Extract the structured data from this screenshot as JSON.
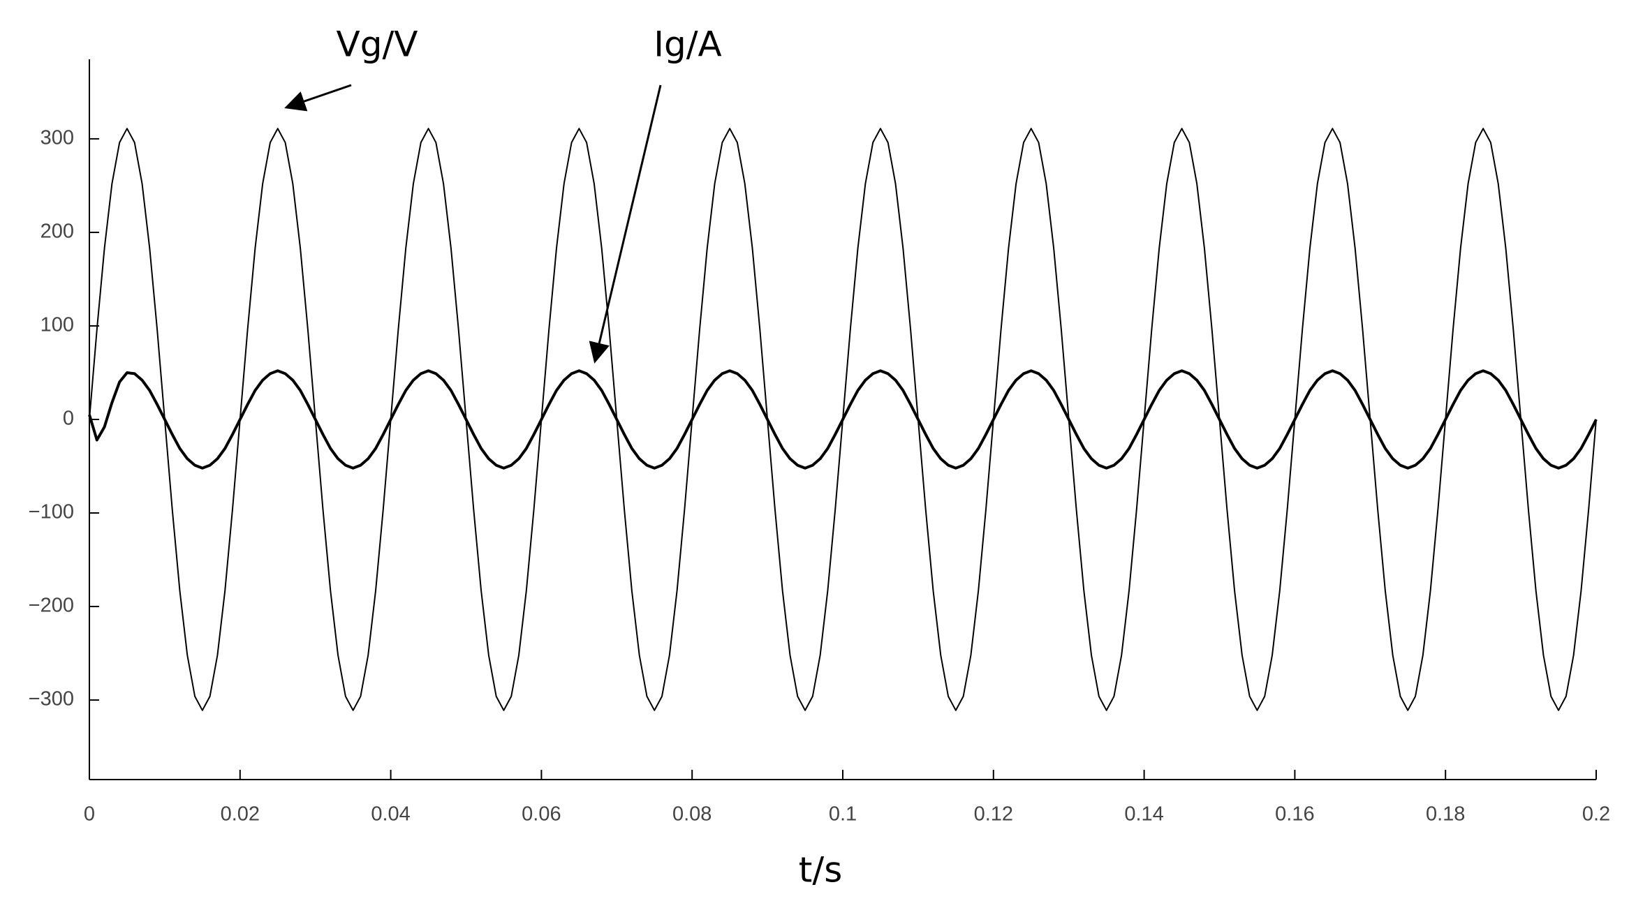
{
  "chart_data": {
    "type": "line",
    "xlabel": "t/s",
    "x": [
      0,
      0.001,
      0.002,
      0.003,
      0.004,
      0.005,
      0.006,
      0.007,
      0.008,
      0.009,
      0.01,
      0.011,
      0.012,
      0.013,
      0.014,
      0.015,
      0.016,
      0.017,
      0.018,
      0.019,
      0.02,
      0.021,
      0.022,
      0.023,
      0.024,
      0.025,
      0.026,
      0.027,
      0.028,
      0.029,
      0.03,
      0.031,
      0.032,
      0.033,
      0.034,
      0.035,
      0.036,
      0.037,
      0.038,
      0.039,
      0.04,
      0.041,
      0.042,
      0.043,
      0.044,
      0.045,
      0.046,
      0.047,
      0.048,
      0.049,
      0.05,
      0.051,
      0.052,
      0.053,
      0.054,
      0.055,
      0.056,
      0.057,
      0.058,
      0.059,
      0.06,
      0.061,
      0.062,
      0.063,
      0.064,
      0.065,
      0.066,
      0.067,
      0.068,
      0.069,
      0.07,
      0.071,
      0.072,
      0.073,
      0.074,
      0.075,
      0.076,
      0.077,
      0.078,
      0.079,
      0.08,
      0.081,
      0.082,
      0.083,
      0.084,
      0.085,
      0.086,
      0.087,
      0.088,
      0.089,
      0.09,
      0.091,
      0.092,
      0.093,
      0.094,
      0.095,
      0.096,
      0.097,
      0.098,
      0.099,
      0.1,
      0.101,
      0.102,
      0.103,
      0.104,
      0.105,
      0.106,
      0.107,
      0.108,
      0.109,
      0.11,
      0.111,
      0.112,
      0.113,
      0.114,
      0.115,
      0.116,
      0.117,
      0.118,
      0.119,
      0.12,
      0.121,
      0.122,
      0.123,
      0.124,
      0.125,
      0.126,
      0.127,
      0.128,
      0.129,
      0.13,
      0.131,
      0.132,
      0.133,
      0.134,
      0.135,
      0.136,
      0.137,
      0.138,
      0.139,
      0.14,
      0.141,
      0.142,
      0.143,
      0.144,
      0.145,
      0.146,
      0.147,
      0.148,
      0.149,
      0.15,
      0.151,
      0.152,
      0.153,
      0.154,
      0.155,
      0.156,
      0.157,
      0.158,
      0.159,
      0.16,
      0.161,
      0.162,
      0.163,
      0.164,
      0.165,
      0.166,
      0.167,
      0.168,
      0.169,
      0.17,
      0.171,
      0.172,
      0.173,
      0.174,
      0.175,
      0.176,
      0.177,
      0.178,
      0.179,
      0.18,
      0.181,
      0.182,
      0.183,
      0.184,
      0.185,
      0.186,
      0.187,
      0.188,
      0.189,
      0.19,
      0.191,
      0.192,
      0.193,
      0.194,
      0.195,
      0.196,
      0.197,
      0.198,
      0.199,
      0.2
    ],
    "series": [
      {
        "name": "Vg/V",
        "color": "#000000",
        "values": [
          0,
          96,
          183,
          252,
          296,
          311,
          296,
          252,
          183,
          96,
          0,
          -96,
          -183,
          -252,
          -296,
          -311,
          -296,
          -252,
          -183,
          -96,
          0,
          96,
          183,
          252,
          296,
          311,
          296,
          252,
          183,
          96,
          0,
          -96,
          -183,
          -252,
          -296,
          -311,
          -296,
          -252,
          -183,
          -96,
          0,
          96,
          183,
          252,
          296,
          311,
          296,
          252,
          183,
          96,
          0,
          -96,
          -183,
          -252,
          -296,
          -311,
          -296,
          -252,
          -183,
          -96,
          0,
          96,
          183,
          252,
          296,
          311,
          296,
          252,
          183,
          96,
          0,
          -96,
          -183,
          -252,
          -296,
          -311,
          -296,
          -252,
          -183,
          -96,
          0,
          96,
          183,
          252,
          296,
          311,
          296,
          252,
          183,
          96,
          0,
          -96,
          -183,
          -252,
          -296,
          -311,
          -296,
          -252,
          -183,
          -96,
          0,
          96,
          183,
          252,
          296,
          311,
          296,
          252,
          183,
          96,
          0,
          -96,
          -183,
          -252,
          -296,
          -311,
          -296,
          -252,
          -183,
          -96,
          0,
          96,
          183,
          252,
          296,
          311,
          296,
          252,
          183,
          96,
          0,
          -96,
          -183,
          -252,
          -296,
          -311,
          -296,
          -252,
          -183,
          -96,
          0,
          96,
          183,
          252,
          296,
          311,
          296,
          252,
          183,
          96,
          0,
          -96,
          -183,
          -252,
          -296,
          -311,
          -296,
          -252,
          -183,
          -96,
          0,
          96,
          183,
          252,
          296,
          311,
          296,
          252,
          183,
          96,
          0,
          -96,
          -183,
          -252,
          -296,
          -311,
          -296,
          -252,
          -183,
          -96,
          0,
          96,
          183,
          252,
          296,
          311,
          296,
          252,
          183,
          96,
          0,
          -96,
          -183,
          -252,
          -296,
          -311,
          -296,
          -252,
          -183,
          -96,
          0
        ]
      },
      {
        "name": "Ig/A",
        "color": "#000000",
        "values": [
          5,
          -22,
          -8,
          18,
          40,
          50,
          49,
          42,
          31,
          16,
          0,
          -16,
          -31,
          -42,
          -49,
          -52,
          -49,
          -42,
          -31,
          -16,
          0,
          16,
          31,
          42,
          49,
          52,
          49,
          42,
          31,
          16,
          0,
          -16,
          -31,
          -42,
          -49,
          -52,
          -49,
          -42,
          -31,
          -16,
          0,
          16,
          31,
          42,
          49,
          52,
          49,
          42,
          31,
          16,
          0,
          -16,
          -31,
          -42,
          -49,
          -52,
          -49,
          -42,
          -31,
          -16,
          0,
          16,
          31,
          42,
          49,
          52,
          49,
          42,
          31,
          16,
          0,
          -16,
          -31,
          -42,
          -49,
          -52,
          -49,
          -42,
          -31,
          -16,
          0,
          16,
          31,
          42,
          49,
          52,
          49,
          42,
          31,
          16,
          0,
          -16,
          -31,
          -42,
          -49,
          -52,
          -49,
          -42,
          -31,
          -16,
          0,
          16,
          31,
          42,
          49,
          52,
          49,
          42,
          31,
          16,
          0,
          -16,
          -31,
          -42,
          -49,
          -52,
          -49,
          -42,
          -31,
          -16,
          0,
          16,
          31,
          42,
          49,
          52,
          49,
          42,
          31,
          16,
          0,
          -16,
          -31,
          -42,
          -49,
          -52,
          -49,
          -42,
          -31,
          -16,
          0,
          16,
          31,
          42,
          49,
          52,
          49,
          42,
          31,
          16,
          0,
          -16,
          -31,
          -42,
          -49,
          -52,
          -49,
          -42,
          -31,
          -16,
          0,
          16,
          31,
          42,
          49,
          52,
          49,
          42,
          31,
          16,
          0,
          -16,
          -31,
          -42,
          -49,
          -52,
          -49,
          -42,
          -31,
          -16,
          0,
          16,
          31,
          42,
          49,
          52,
          49,
          42,
          31,
          16,
          0,
          -16,
          -31,
          -42,
          -49,
          -52,
          -49,
          -42,
          -31,
          -16,
          0
        ]
      }
    ],
    "xlim": [
      0,
      0.2
    ],
    "xticks": [
      0,
      0.02,
      0.04,
      0.06,
      0.08,
      0.1,
      0.12,
      0.14,
      0.16,
      0.18,
      0.2
    ],
    "ylim": [
      -385,
      385
    ],
    "yticks": [
      {
        "value": -300,
        "label": "−300"
      },
      {
        "value": -200,
        "label": "−200"
      },
      {
        "value": -100,
        "label": "−100"
      },
      0,
      100,
      200,
      300
    ],
    "grid": false
  }
}
